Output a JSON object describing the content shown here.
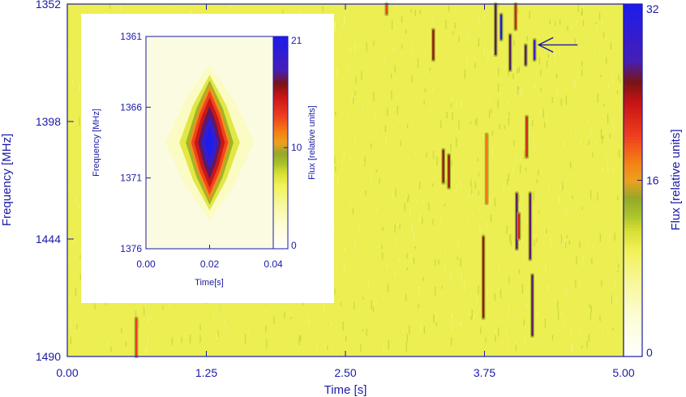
{
  "chart_data": [
    {
      "type": "heatmap",
      "title": "",
      "xlabel": "Time [s]",
      "ylabel": "Frequency [MHz]",
      "xlim": [
        0.0,
        5.0
      ],
      "ylim": [
        1352,
        1490
      ],
      "y_inverted": true,
      "x_ticks": [
        "0.00",
        "1.25",
        "2.50",
        "3.75",
        "5.00"
      ],
      "y_ticks": [
        "1352",
        "1398",
        "1444",
        "1490"
      ],
      "colorbar": {
        "label": "Flux [relative units]",
        "range": [
          0,
          32
        ],
        "ticks": [
          "0",
          "16",
          "32"
        ]
      },
      "background_level": 10,
      "features": [
        {
          "time": 0.62,
          "freq_start": 1475,
          "freq_end": 1490,
          "peak_flux": 20
        },
        {
          "time": 2.87,
          "freq_start": 1352,
          "freq_end": 1356,
          "peak_flux": 20
        },
        {
          "time": 3.29,
          "freq_start": 1362,
          "freq_end": 1374,
          "peak_flux": 24
        },
        {
          "time": 3.38,
          "freq_start": 1409,
          "freq_end": 1422,
          "peak_flux": 24
        },
        {
          "time": 3.43,
          "freq_start": 1411,
          "freq_end": 1424,
          "peak_flux": 24
        },
        {
          "time": 3.74,
          "freq_start": 1443,
          "freq_end": 1475,
          "peak_flux": 24
        },
        {
          "time": 3.77,
          "freq_start": 1403,
          "freq_end": 1430,
          "peak_flux": 18
        },
        {
          "time": 3.85,
          "freq_start": 1352,
          "freq_end": 1372,
          "peak_flux": 26
        },
        {
          "time": 3.9,
          "freq_start": 1356,
          "freq_end": 1366,
          "peak_flux": 32
        },
        {
          "time": 3.98,
          "freq_start": 1364,
          "freq_end": 1378,
          "peak_flux": 26
        },
        {
          "time": 4.03,
          "freq_start": 1352,
          "freq_end": 1362,
          "peak_flux": 22
        },
        {
          "time": 4.04,
          "freq_start": 1426,
          "freq_end": 1448,
          "peak_flux": 26
        },
        {
          "time": 4.06,
          "freq_start": 1434,
          "freq_end": 1444,
          "peak_flux": 22
        },
        {
          "time": 4.12,
          "freq_start": 1368,
          "freq_end": 1376,
          "peak_flux": 26
        },
        {
          "time": 4.13,
          "freq_start": 1396,
          "freq_end": 1412,
          "peak_flux": 22
        },
        {
          "time": 4.16,
          "freq_start": 1426,
          "freq_end": 1452,
          "peak_flux": 26
        },
        {
          "time": 4.18,
          "freq_start": 1458,
          "freq_end": 1482,
          "peak_flux": 26
        },
        {
          "time": 4.2,
          "freq_start": 1366,
          "freq_end": 1374,
          "peak_flux": 28
        }
      ],
      "annotations": [
        {
          "type": "arrow",
          "target_time": 4.2,
          "target_freq": 1368,
          "direction": "left"
        }
      ]
    },
    {
      "type": "heatmap",
      "title": "",
      "xlabel": "Time[s]",
      "ylabel": "Frequency [MHz]",
      "xlim": [
        0.0,
        0.04
      ],
      "ylim": [
        1361,
        1376
      ],
      "y_inverted": true,
      "x_ticks": [
        "0.00",
        "0.02",
        "0.04"
      ],
      "y_ticks": [
        "1361",
        "1366",
        "1371",
        "1376"
      ],
      "colorbar": {
        "label": "Flux [relative units]",
        "range": [
          0,
          21
        ],
        "ticks": [
          "0",
          "10",
          "21"
        ]
      },
      "peak": {
        "time": 0.02,
        "freq": 1368.5,
        "flux": 21
      },
      "contours": [
        {
          "level": 3,
          "dt": 0.014,
          "df": 5.5
        },
        {
          "level": 7,
          "dt": 0.0095,
          "df": 4.8
        },
        {
          "level": 9,
          "dt": 0.0075,
          "df": 4.4
        },
        {
          "level": 11,
          "dt": 0.0065,
          "df": 4.1
        },
        {
          "level": 13,
          "dt": 0.0058,
          "df": 3.7
        },
        {
          "level": 15,
          "dt": 0.0048,
          "df": 3.2
        },
        {
          "level": 17,
          "dt": 0.0036,
          "df": 2.6
        },
        {
          "level": 19,
          "dt": 0.0026,
          "df": 1.9
        },
        {
          "level": 21,
          "dt": 0.0014,
          "df": 1.1
        }
      ]
    }
  ]
}
